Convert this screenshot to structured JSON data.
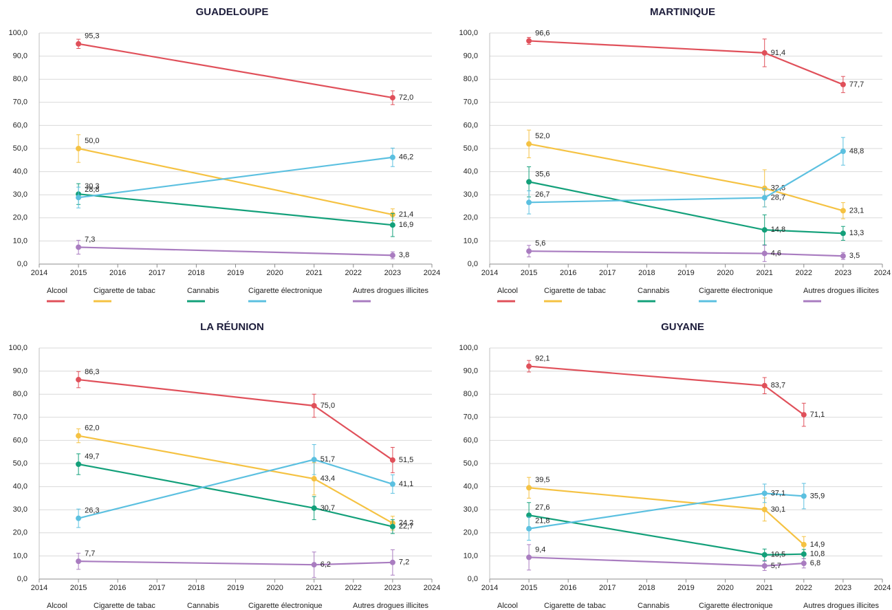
{
  "chart_data": [
    {
      "type": "line",
      "title": "GUADELOUPE",
      "x": [
        2015,
        2023
      ],
      "xlim": [
        2014,
        2024
      ],
      "xticks": [
        2014,
        2015,
        2016,
        2017,
        2018,
        2019,
        2020,
        2021,
        2022,
        2023,
        2024
      ],
      "ylim": [
        0,
        100
      ],
      "yticks": [
        {
          "value": 0,
          "label": "0,0"
        },
        {
          "value": 10,
          "label": "10,0"
        },
        {
          "value": 20,
          "label": "20,0"
        },
        {
          "value": 30,
          "label": "30,0"
        },
        {
          "value": 40,
          "label": "40,0"
        },
        {
          "value": 50,
          "label": "50,0"
        },
        {
          "value": 60,
          "label": "60,0"
        },
        {
          "value": 70,
          "label": "70,0"
        },
        {
          "value": 80,
          "label": "80,0"
        },
        {
          "value": 90,
          "label": "90,0"
        },
        {
          "value": 100,
          "label": "100,0"
        }
      ],
      "grid": true,
      "legend_swatches": true,
      "series": [
        {
          "name": "Alcool",
          "color": "#e0505a",
          "values": [
            95.3,
            72.0
          ],
          "value_labels": [
            "95,3",
            "72,0"
          ],
          "errors": [
            2,
            3
          ]
        },
        {
          "name": "Cigarette de tabac",
          "color": "#f5c242",
          "values": [
            50.0,
            21.4
          ],
          "value_labels": [
            "50,0",
            "21,4"
          ],
          "errors": [
            6,
            2.5
          ]
        },
        {
          "name": "Cannabis",
          "color": "#13a07a",
          "values": [
            30.3,
            16.9
          ],
          "value_labels": [
            "30,3",
            "16,9"
          ],
          "errors": [
            4.5,
            5
          ]
        },
        {
          "name": "Cigarette électronique",
          "color": "#5bc0e0",
          "values": [
            28.8,
            46.2
          ],
          "value_labels": [
            "28,8",
            "46,2"
          ],
          "errors": [
            4.5,
            4
          ]
        },
        {
          "name": "Autres drogues illicites",
          "color": "#a97cc0",
          "values": [
            7.3,
            3.8
          ],
          "value_labels": [
            "7,3",
            "3,8"
          ],
          "errors": [
            3,
            1.5
          ]
        }
      ]
    },
    {
      "type": "line",
      "title": "MARTINIQUE",
      "x": [
        2015,
        2021,
        2023
      ],
      "xlim": [
        2014,
        2024
      ],
      "xticks": [
        2014,
        2015,
        2016,
        2017,
        2018,
        2019,
        2020,
        2021,
        2022,
        2023,
        2024
      ],
      "ylim": [
        0,
        100
      ],
      "yticks": [
        {
          "value": 0,
          "label": "0,0"
        },
        {
          "value": 10,
          "label": "10,0"
        },
        {
          "value": 20,
          "label": "20,0"
        },
        {
          "value": 30,
          "label": "30,0"
        },
        {
          "value": 40,
          "label": "40,0"
        },
        {
          "value": 50,
          "label": "50,0"
        },
        {
          "value": 60,
          "label": "60,0"
        },
        {
          "value": 70,
          "label": "70,0"
        },
        {
          "value": 80,
          "label": "80,0"
        },
        {
          "value": 90,
          "label": "90,0"
        },
        {
          "value": 100,
          "label": "100,0"
        }
      ],
      "grid": true,
      "legend_swatches": true,
      "series": [
        {
          "name": "Alcool",
          "color": "#e0505a",
          "values": [
            96.6,
            91.4,
            77.7
          ],
          "value_labels": [
            "96,6",
            "91,4",
            "77,7"
          ],
          "errors": [
            1.5,
            6,
            3.5
          ]
        },
        {
          "name": "Cigarette de tabac",
          "color": "#f5c242",
          "values": [
            52.0,
            32.8,
            23.1
          ],
          "value_labels": [
            "52,0",
            "32,8",
            "23,1"
          ],
          "errors": [
            6,
            8,
            3.5
          ]
        },
        {
          "name": "Cannabis",
          "color": "#13a07a",
          "values": [
            35.6,
            14.8,
            13.3
          ],
          "value_labels": [
            "35,6",
            "14,8",
            "13,3"
          ],
          "errors": [
            6.5,
            6.5,
            3
          ]
        },
        {
          "name": "Cigarette électronique",
          "color": "#5bc0e0",
          "values": [
            26.7,
            28.7,
            48.8
          ],
          "value_labels": [
            "26,7",
            "28,7",
            "48,8"
          ],
          "errors": [
            5,
            4,
            6
          ]
        },
        {
          "name": "Autres drogues illicites",
          "color": "#a97cc0",
          "values": [
            5.6,
            4.6,
            3.5
          ],
          "value_labels": [
            "5,6",
            "4,6",
            "3,5"
          ],
          "errors": [
            2.5,
            3.5,
            1.5
          ]
        }
      ]
    },
    {
      "type": "line",
      "title": "LA RÉUNION",
      "x": [
        2015,
        2021,
        2023
      ],
      "xlim": [
        2014,
        2024
      ],
      "xticks": [
        2014,
        2015,
        2016,
        2017,
        2018,
        2019,
        2020,
        2021,
        2022,
        2023,
        2024
      ],
      "ylim": [
        0,
        100
      ],
      "yticks": [
        {
          "value": 0,
          "label": "0,0"
        },
        {
          "value": 10,
          "label": "10,0"
        },
        {
          "value": 20,
          "label": "20,0"
        },
        {
          "value": 30,
          "label": "30,0"
        },
        {
          "value": 40,
          "label": "40,0"
        },
        {
          "value": 50,
          "label": "50,0"
        },
        {
          "value": 60,
          "label": "60,0"
        },
        {
          "value": 70,
          "label": "70,0"
        },
        {
          "value": 80,
          "label": "80,0"
        },
        {
          "value": 90,
          "label": "90,0"
        },
        {
          "value": 100,
          "label": "100,0"
        }
      ],
      "grid": true,
      "legend_swatches": false,
      "series": [
        {
          "name": "Alcool",
          "color": "#e0505a",
          "values": [
            86.3,
            75.0,
            51.5
          ],
          "value_labels": [
            "86,3",
            "75,0",
            "51,5"
          ],
          "errors": [
            3.5,
            5,
            5.5
          ]
        },
        {
          "name": "Cigarette de tabac",
          "color": "#f5c242",
          "values": [
            62.0,
            43.4,
            24.2
          ],
          "value_labels": [
            "62,0",
            "43,4",
            "24,2"
          ],
          "errors": [
            3,
            7,
            3
          ]
        },
        {
          "name": "Cannabis",
          "color": "#13a07a",
          "values": [
            49.7,
            30.7,
            22.7
          ],
          "value_labels": [
            "49,7",
            "30,7",
            "22,7"
          ],
          "errors": [
            4.5,
            5,
            3
          ]
        },
        {
          "name": "Cigarette électronique",
          "color": "#5bc0e0",
          "values": [
            26.3,
            51.7,
            41.1
          ],
          "value_labels": [
            "26,3",
            "51,7",
            "41,1"
          ],
          "errors": [
            4,
            6.5,
            4
          ]
        },
        {
          "name": "Autres drogues illicites",
          "color": "#a97cc0",
          "values": [
            7.7,
            6.2,
            7.2
          ],
          "value_labels": [
            "7,7",
            "6,2",
            "7,2"
          ],
          "errors": [
            3.5,
            5.5,
            5.5
          ]
        }
      ]
    },
    {
      "type": "line",
      "title": "GUYANE",
      "x": [
        2015,
        2021,
        2022
      ],
      "xlim": [
        2014,
        2024
      ],
      "xticks": [
        2014,
        2015,
        2016,
        2017,
        2018,
        2019,
        2020,
        2021,
        2022,
        2023,
        2024
      ],
      "ylim": [
        0,
        100
      ],
      "yticks": [
        {
          "value": 0,
          "label": "0,0"
        },
        {
          "value": 10,
          "label": "10,0"
        },
        {
          "value": 20,
          "label": "20,0"
        },
        {
          "value": 30,
          "label": "30,0"
        },
        {
          "value": 40,
          "label": "40,0"
        },
        {
          "value": 50,
          "label": "50,0"
        },
        {
          "value": 60,
          "label": "60,0"
        },
        {
          "value": 70,
          "label": "70,0"
        },
        {
          "value": 80,
          "label": "80,0"
        },
        {
          "value": 90,
          "label": "90,0"
        },
        {
          "value": 100,
          "label": "100,0"
        }
      ],
      "grid": true,
      "legend_swatches": false,
      "series": [
        {
          "name": "Alcool",
          "color": "#e0505a",
          "values": [
            92.1,
            83.7,
            71.1
          ],
          "value_labels": [
            "92,1",
            "83,7",
            "71,1"
          ],
          "errors": [
            2.5,
            3.5,
            5
          ]
        },
        {
          "name": "Cigarette de tabac",
          "color": "#f5c242",
          "values": [
            39.5,
            30.1,
            14.9
          ],
          "value_labels": [
            "39,5",
            "30,1",
            "14,9"
          ],
          "errors": [
            4.5,
            5,
            3.5
          ]
        },
        {
          "name": "Cannabis",
          "color": "#13a07a",
          "values": [
            27.6,
            10.5,
            10.8
          ],
          "value_labels": [
            "27,6",
            "10,5",
            "10,8"
          ],
          "errors": [
            5.5,
            2.5,
            2
          ]
        },
        {
          "name": "Cigarette électronique",
          "color": "#5bc0e0",
          "values": [
            21.8,
            37.1,
            35.9
          ],
          "value_labels": [
            "21,8",
            "37,1",
            "35,9"
          ],
          "errors": [
            5,
            4,
            5.5
          ]
        },
        {
          "name": "Autres drogues illicites",
          "color": "#a97cc0",
          "values": [
            9.4,
            5.7,
            6.8
          ],
          "value_labels": [
            "9,4",
            "5,7",
            "6,8"
          ],
          "errors": [
            5.5,
            2,
            2
          ]
        }
      ]
    }
  ]
}
